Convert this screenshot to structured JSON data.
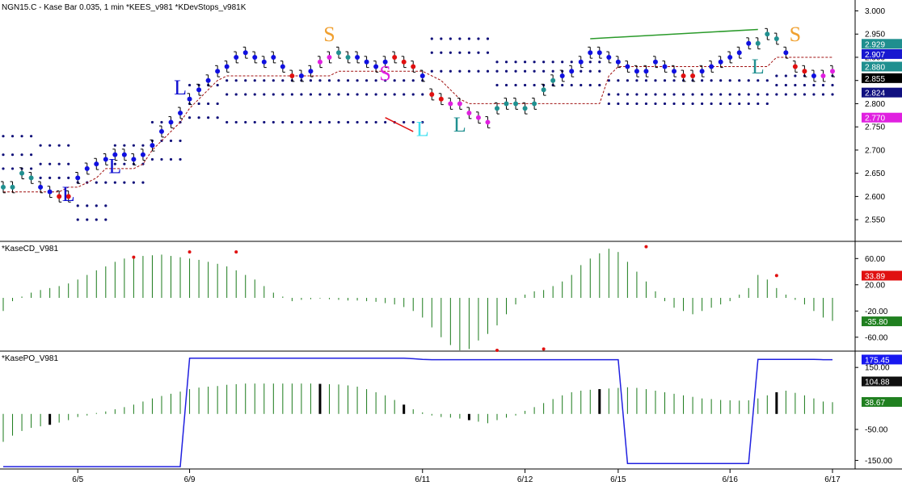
{
  "header": "NGN15.C - Kase Bar 0.035, 1 min  *KEES_v981  *KDevStops_v981K",
  "pane_titles": {
    "cd": "*KaseCD_V981",
    "po": "*KasePO_V981"
  },
  "colors": {
    "up": "#1010e0",
    "down": "#e01010",
    "teal": "#209090",
    "magenta": "#e020e0",
    "line_green": "#1a7a1a",
    "po_blue": "#2020e0",
    "stop": "#a01010",
    "dot": "#10107a"
  },
  "chart_data": [
    {
      "type": "price-bars",
      "pane": "price",
      "ylim": [
        2.505,
        3.02
      ],
      "ticks": [
        "3.000",
        "2.950",
        "2.900",
        "2.850",
        "2.800",
        "2.750",
        "2.700",
        "2.650",
        "2.600",
        "2.550"
      ],
      "badges": [
        {
          "label": "2.929",
          "color": "#1f8f8f",
          "value": 2.929
        },
        {
          "label": "2.907",
          "color": "#1818d0",
          "value": 2.907
        },
        {
          "label": "2.880",
          "color": "#1f8f8f",
          "value": 2.88
        },
        {
          "label": "2.855",
          "color": "#000000",
          "value": 2.855
        },
        {
          "label": "2.824",
          "color": "#101080",
          "value": 2.824
        },
        {
          "label": "2.770",
          "color": "#e020e0",
          "value": 2.77
        }
      ],
      "close": [
        2.62,
        2.62,
        2.65,
        2.64,
        2.62,
        2.61,
        2.6,
        2.6,
        2.64,
        2.66,
        2.67,
        2.68,
        2.69,
        2.69,
        2.68,
        2.69,
        2.71,
        2.74,
        2.76,
        2.78,
        2.81,
        2.83,
        2.85,
        2.87,
        2.88,
        2.9,
        2.91,
        2.9,
        2.89,
        2.9,
        2.88,
        2.86,
        2.86,
        2.87,
        2.89,
        2.9,
        2.91,
        2.9,
        2.9,
        2.89,
        2.88,
        2.89,
        2.9,
        2.89,
        2.88,
        2.86,
        2.82,
        2.81,
        2.8,
        2.8,
        2.78,
        2.77,
        2.76,
        2.79,
        2.8,
        2.8,
        2.79,
        2.8,
        2.83,
        2.85,
        2.86,
        2.87,
        2.89,
        2.91,
        2.91,
        2.9,
        2.89,
        2.88,
        2.87,
        2.87,
        2.89,
        2.88,
        2.87,
        2.86,
        2.86,
        2.87,
        2.88,
        2.89,
        2.9,
        2.91,
        2.93,
        2.93,
        2.95,
        2.94,
        2.91,
        2.88,
        2.87,
        2.86,
        2.86,
        2.87
      ],
      "colors": [
        "t",
        "t",
        "t",
        "t",
        "b",
        "b",
        "r",
        "r",
        "b",
        "b",
        "b",
        "b",
        "b",
        "b",
        "b",
        "b",
        "b",
        "b",
        "b",
        "b",
        "b",
        "b",
        "b",
        "b",
        "b",
        "b",
        "b",
        "b",
        "b",
        "b",
        "b",
        "r",
        "b",
        "b",
        "m",
        "m",
        "t",
        "t",
        "b",
        "b",
        "b",
        "b",
        "r",
        "r",
        "r",
        "b",
        "r",
        "r",
        "m",
        "m",
        "m",
        "m",
        "m",
        "t",
        "t",
        "t",
        "t",
        "t",
        "t",
        "t",
        "b",
        "b",
        "b",
        "b",
        "b",
        "b",
        "b",
        "b",
        "b",
        "b",
        "b",
        "b",
        "b",
        "r",
        "r",
        "b",
        "b",
        "b",
        "b",
        "b",
        "b",
        "t",
        "t",
        "t",
        "b",
        "r",
        "r",
        "b",
        "m",
        "m"
      ],
      "stop": [
        2.61,
        2.61,
        2.61,
        2.61,
        2.61,
        2.61,
        2.61,
        2.62,
        2.62,
        2.63,
        2.64,
        2.66,
        2.66,
        2.66,
        2.66,
        2.67,
        2.7,
        2.72,
        2.74,
        2.76,
        2.79,
        2.81,
        2.83,
        2.85,
        2.86,
        2.86,
        2.86,
        2.86,
        2.86,
        2.86,
        2.86,
        2.86,
        2.86,
        2.86,
        2.86,
        2.86,
        2.87,
        2.87,
        2.87,
        2.87,
        2.87,
        2.87,
        2.87,
        2.87,
        2.87,
        2.87,
        2.86,
        2.85,
        2.83,
        2.81,
        2.8,
        2.8,
        2.8,
        2.8,
        2.8,
        2.8,
        2.8,
        2.8,
        2.8,
        2.8,
        2.8,
        2.8,
        2.8,
        2.8,
        2.8,
        2.86,
        2.88,
        2.88,
        2.88,
        2.88,
        2.88,
        2.88,
        2.88,
        2.88,
        2.88,
        2.88,
        2.88,
        2.88,
        2.88,
        2.88,
        2.88,
        2.88,
        2.88,
        2.9,
        2.9,
        2.9,
        2.9,
        2.9,
        2.9,
        2.9
      ],
      "dev_levels": [
        [
          2.73,
          2.69,
          2.66
        ],
        [
          2.73,
          2.69,
          2.66
        ],
        [
          2.73,
          2.69,
          2.66
        ],
        [
          2.73,
          2.69,
          2.66
        ],
        [
          2.71,
          2.67,
          2.64
        ],
        [
          2.71,
          2.67,
          2.64
        ],
        [
          2.71,
          2.67,
          2.64
        ],
        [
          2.71,
          2.67,
          2.64
        ],
        [
          2.63,
          2.58,
          2.55
        ],
        [
          2.63,
          2.58,
          2.55
        ],
        [
          2.63,
          2.58,
          2.55
        ],
        [
          2.63,
          2.58,
          2.55
        ],
        [
          2.71,
          2.67,
          2.63
        ],
        [
          2.71,
          2.67,
          2.63
        ],
        [
          2.71,
          2.67,
          2.63
        ],
        [
          2.71,
          2.67,
          2.63
        ],
        [
          2.76,
          2.72,
          2.68
        ],
        [
          2.76,
          2.72,
          2.68
        ],
        [
          2.76,
          2.72,
          2.68
        ],
        [
          2.76,
          2.72,
          2.68
        ],
        [
          2.84,
          2.8,
          2.77
        ],
        [
          2.84,
          2.8,
          2.77
        ],
        [
          2.84,
          2.8,
          2.77
        ],
        [
          2.84,
          2.8,
          2.77
        ],
        [
          2.85,
          2.82,
          2.76
        ],
        [
          2.85,
          2.82,
          2.76
        ],
        [
          2.85,
          2.82,
          2.76
        ],
        [
          2.85,
          2.82,
          2.76
        ],
        [
          2.85,
          2.82,
          2.76
        ],
        [
          2.85,
          2.82,
          2.76
        ],
        [
          2.85,
          2.82,
          2.76
        ],
        [
          2.85,
          2.82,
          2.76
        ],
        [
          2.85,
          2.82,
          2.76
        ],
        [
          2.85,
          2.82,
          2.76
        ],
        [
          2.85,
          2.82,
          2.76
        ],
        [
          2.85,
          2.82,
          2.76
        ],
        [
          2.85,
          2.82,
          2.76
        ],
        [
          2.85,
          2.82,
          2.76
        ],
        [
          2.85,
          2.82,
          2.76
        ],
        [
          2.85,
          2.82,
          2.76
        ],
        [
          2.85,
          2.82,
          2.76
        ],
        [
          2.85,
          2.82,
          2.76
        ],
        [
          2.85,
          2.82,
          2.76
        ],
        [
          2.85,
          2.82,
          2.76
        ],
        [
          2.85,
          2.82,
          2.76
        ],
        [
          2.85,
          2.82,
          2.76
        ],
        [
          2.94,
          2.91,
          2.87
        ],
        [
          2.94,
          2.91,
          2.87
        ],
        [
          2.94,
          2.91,
          2.87
        ],
        [
          2.94,
          2.91,
          2.87
        ],
        [
          2.94,
          2.91,
          2.87
        ],
        [
          2.94,
          2.91,
          2.87
        ],
        [
          2.94,
          2.91,
          2.87
        ],
        [
          2.89,
          2.87,
          2.84
        ],
        [
          2.89,
          2.87,
          2.84
        ],
        [
          2.89,
          2.87,
          2.84
        ],
        [
          2.89,
          2.87,
          2.84
        ],
        [
          2.89,
          2.87,
          2.84
        ],
        [
          2.89,
          2.87,
          2.84
        ],
        [
          2.89,
          2.87,
          2.84
        ],
        [
          2.89,
          2.87,
          2.84
        ],
        [
          2.89,
          2.87,
          2.84
        ],
        [
          2.89,
          2.87,
          2.84
        ],
        [
          2.89,
          2.87,
          2.84
        ],
        [
          2.89,
          2.87,
          2.84
        ],
        [
          2.85,
          2.82,
          2.8
        ],
        [
          2.85,
          2.82,
          2.8
        ],
        [
          2.85,
          2.82,
          2.8
        ],
        [
          2.85,
          2.82,
          2.8
        ],
        [
          2.85,
          2.82,
          2.8
        ],
        [
          2.85,
          2.82,
          2.8
        ],
        [
          2.85,
          2.82,
          2.8
        ],
        [
          2.85,
          2.82,
          2.8
        ],
        [
          2.85,
          2.82,
          2.8
        ],
        [
          2.85,
          2.82,
          2.8
        ],
        [
          2.85,
          2.82,
          2.8
        ],
        [
          2.85,
          2.82,
          2.8
        ],
        [
          2.85,
          2.82,
          2.8
        ],
        [
          2.85,
          2.82,
          2.8
        ],
        [
          2.85,
          2.82,
          2.8
        ],
        [
          2.85,
          2.82,
          2.8
        ],
        [
          2.85,
          2.82,
          2.8
        ],
        [
          2.85,
          2.82,
          2.8
        ],
        [
          2.86,
          2.84,
          2.82
        ],
        [
          2.86,
          2.84,
          2.82
        ],
        [
          2.86,
          2.84,
          2.82
        ],
        [
          2.86,
          2.84,
          2.82
        ],
        [
          2.86,
          2.84,
          2.82
        ],
        [
          2.86,
          2.84,
          2.82
        ],
        [
          2.86,
          2.84,
          2.82
        ]
      ],
      "signals": [
        {
          "label": "L",
          "color": "#1010d0",
          "bar": 7,
          "value": 2.59
        },
        {
          "label": "L",
          "color": "#1010d0",
          "bar": 12,
          "value": 2.65
        },
        {
          "label": "L",
          "color": "#1010d0",
          "bar": 19,
          "value": 2.82
        },
        {
          "label": "S",
          "color": "#f0a030",
          "bar": 35,
          "value": 2.935
        },
        {
          "label": "S",
          "color": "#e020e0",
          "bar": 41,
          "value": 2.85
        },
        {
          "label": "L",
          "color": "#40e0f0",
          "bar": 45,
          "value": 2.73
        },
        {
          "label": "L",
          "color": "#209090",
          "bar": 49,
          "value": 2.74
        },
        {
          "label": "L",
          "color": "#209090",
          "bar": 81,
          "value": 2.865
        },
        {
          "label": "S",
          "color": "#f0a030",
          "bar": 85,
          "value": 2.935
        }
      ],
      "trendlines": [
        {
          "color": "#2a9a2a",
          "from": {
            "bar": 63,
            "value": 2.94
          },
          "to": {
            "bar": 81,
            "value": 2.96
          }
        },
        {
          "color": "#e01010",
          "from": {
            "bar": 41,
            "value": 2.77
          },
          "to": {
            "bar": 44,
            "value": 2.74
          }
        }
      ]
    },
    {
      "type": "bar",
      "pane": "cd",
      "title": "*KaseCD_V981",
      "ylim": [
        -80,
        85
      ],
      "ticks": [
        "60.00",
        "20.00",
        "-20.00",
        "-60.00"
      ],
      "badges": [
        {
          "label": "33.89",
          "color": "#e01010",
          "value": 33.89
        },
        {
          "label": "-35.80",
          "color": "#208020",
          "value": -35.8
        }
      ],
      "values": [
        -20,
        -5,
        2,
        8,
        12,
        15,
        18,
        22,
        28,
        35,
        42,
        48,
        55,
        60,
        62,
        64,
        65,
        66,
        64,
        62,
        60,
        58,
        55,
        52,
        48,
        42,
        35,
        28,
        18,
        8,
        2,
        -5,
        -3,
        -2,
        -1,
        -2,
        -3,
        -4,
        -4,
        -5,
        -6,
        -8,
        -10,
        -14,
        -20,
        -30,
        -45,
        -60,
        -72,
        -80,
        -78,
        -65,
        -55,
        -42,
        -25,
        -10,
        5,
        10,
        12,
        18,
        25,
        35,
        50,
        60,
        68,
        75,
        70,
        55,
        40,
        25,
        10,
        -5,
        -15,
        -20,
        -25,
        -20,
        -15,
        -10,
        -5,
        5,
        15,
        35,
        28,
        15,
        5,
        -3,
        -10,
        -20,
        -30,
        -35
      ],
      "dots": [
        {
          "bar": 14,
          "value": 62
        },
        {
          "bar": 20,
          "value": 70
        },
        {
          "bar": 25,
          "value": 70
        },
        {
          "bar": 53,
          "value": -80
        },
        {
          "bar": 58,
          "value": -78
        },
        {
          "bar": 69,
          "value": 78
        },
        {
          "bar": 83,
          "value": 34
        }
      ]
    },
    {
      "type": "bar",
      "pane": "po",
      "title": "*KasePO_V981",
      "ylim": [
        -175,
        200
      ],
      "ticks": [
        "150.00",
        "-50.00",
        "-150.00"
      ],
      "badges": [
        {
          "label": "175.45",
          "color": "#1818f0",
          "value": 175.45
        },
        {
          "label": "104.88",
          "color": "#101010",
          "value": 104.88
        },
        {
          "label": "38.67",
          "color": "#208020",
          "value": 38.67
        }
      ],
      "values": [
        -90,
        -70,
        -55,
        -45,
        -40,
        -35,
        -28,
        -20,
        -10,
        -5,
        3,
        8,
        15,
        22,
        30,
        40,
        50,
        58,
        65,
        72,
        80,
        85,
        88,
        90,
        94,
        96,
        98,
        98,
        98,
        98,
        98,
        98,
        98,
        98,
        97,
        96,
        95,
        92,
        88,
        80,
        70,
        60,
        45,
        30,
        15,
        5,
        -5,
        -10,
        -12,
        -15,
        -20,
        -25,
        -30,
        -20,
        -12,
        -5,
        10,
        22,
        35,
        48,
        60,
        70,
        75,
        78,
        80,
        82,
        84,
        86,
        84,
        80,
        75,
        70,
        65,
        60,
        55,
        50,
        48,
        45,
        44,
        43,
        44,
        50,
        60,
        70,
        75,
        68,
        60,
        50,
        40,
        38
      ],
      "highlight": [
        5,
        34,
        43,
        50,
        64,
        83
      ],
      "line": [
        -170,
        -170,
        -170,
        -170,
        -170,
        -170,
        -170,
        -170,
        -170,
        -170,
        -170,
        -170,
        -170,
        -170,
        -170,
        -170,
        -170,
        -170,
        -170,
        -170,
        180,
        180,
        180,
        180,
        180,
        180,
        180,
        180,
        180,
        180,
        180,
        180,
        180,
        180,
        180,
        180,
        180,
        180,
        180,
        180,
        180,
        180,
        180,
        180,
        178,
        176,
        175,
        175,
        175,
        175,
        175,
        175,
        175,
        175,
        175,
        175,
        175,
        175,
        175,
        175,
        175,
        175,
        175,
        175,
        175,
        175,
        175,
        -160,
        -160,
        -160,
        -160,
        -160,
        -160,
        -160,
        -160,
        -160,
        -160,
        -160,
        -160,
        -160,
        -160,
        176,
        176,
        176,
        176,
        176,
        176,
        176,
        175,
        175
      ],
      "reset_index": [
        20,
        55,
        69
      ]
    }
  ],
  "x_axis": {
    "labels": [
      "6/5",
      "6/9",
      "6/11",
      "6/12",
      "6/15",
      "6/16",
      "6/17"
    ],
    "label_bars": [
      8,
      20,
      45,
      56,
      66,
      78,
      89
    ],
    "bar_count": 90
  }
}
